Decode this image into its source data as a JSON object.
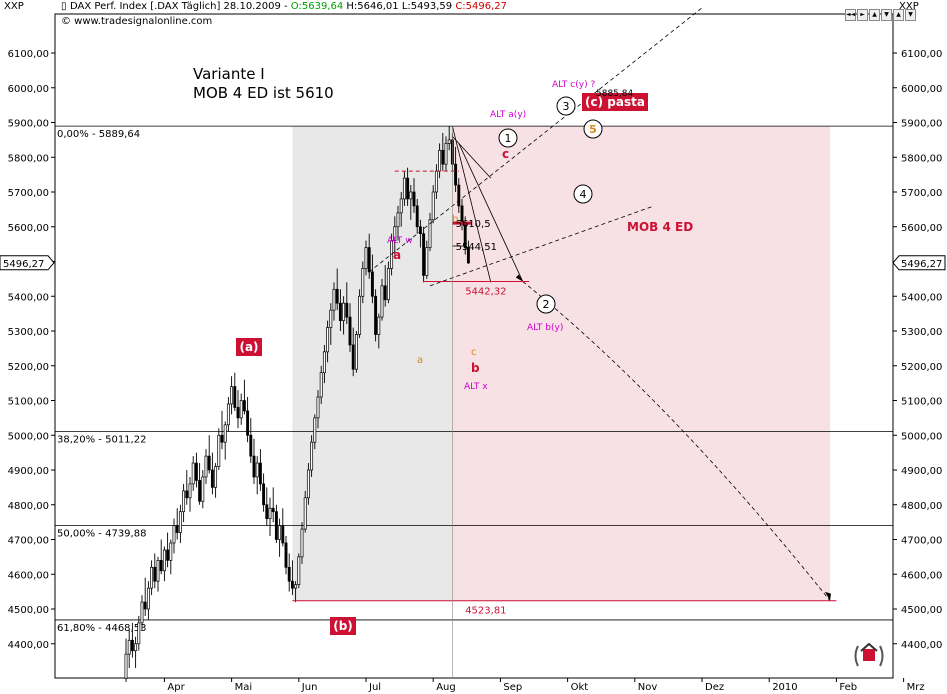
{
  "toolbar": {
    "symbol_left": "XXP",
    "symbol_right": "XXP",
    "nav_buttons": [
      "◄◄",
      "►",
      "▲",
      "▼",
      "▲",
      "▼"
    ]
  },
  "header": {
    "title_black": "DAX Perf. Index [.DAX Täglich] 28.10.2009 -",
    "open": "O:5639,64",
    "high_low": "H:5646,01 L:5493,59",
    "close": "C:5496,27",
    "copyright": "© www.tradesignalonline.com"
  },
  "notes": {
    "line1": "Variante I",
    "line2": "MOB 4 ED ist 5610"
  },
  "colors": {
    "grey_zone": "#e8e8e8",
    "pink_zone": "#f7e1e4",
    "red": "#cc1133",
    "magenta": "#cc00cc",
    "orange": "#d4881a",
    "candle_up": "#ffffff",
    "candle_down": "#000000"
  },
  "chart_data": {
    "type": "candlestick",
    "y_axis": {
      "range": [
        4330,
        6180
      ],
      "ticks": [
        4400,
        4500,
        4600,
        4700,
        4800,
        4900,
        5000,
        5100,
        5200,
        5300,
        5400,
        5500,
        5600,
        5700,
        5800,
        5900,
        6000,
        6100
      ],
      "tick_labels": [
        "4400,00",
        "4500,00",
        "4600,00",
        "4700,00",
        "4800,00",
        "4900,00",
        "5000,00",
        "5100,00",
        "5200,00",
        "5300,00",
        "5400,00",
        "5500,00",
        "5600,00",
        "5700,00",
        "5800,00",
        "5900,00",
        "6000,00",
        "6100,00"
      ],
      "current_value_label": "5496,27",
      "current_value": 5496.27
    },
    "x_axis": {
      "labels": [
        "Apr",
        "Mai",
        "Jun",
        "Jul",
        "Aug",
        "Sep",
        "Okt",
        "Nov",
        "Dez",
        "2010",
        "Feb",
        "Mrz"
      ],
      "label_x_index": [
        12,
        33,
        54,
        75,
        96,
        117,
        138,
        159,
        180,
        201,
        222,
        243
      ]
    },
    "bars": [
      [
        4300,
        4415,
        4290,
        4370
      ],
      [
        4370,
        4440,
        4330,
        4410
      ],
      [
        4410,
        4460,
        4360,
        4380
      ],
      [
        4380,
        4420,
        4330,
        4400
      ],
      [
        4400,
        4480,
        4380,
        4460
      ],
      [
        4460,
        4540,
        4440,
        4520
      ],
      [
        4520,
        4590,
        4480,
        4500
      ],
      [
        4500,
        4580,
        4470,
        4560
      ],
      [
        4560,
        4640,
        4540,
        4620
      ],
      [
        4620,
        4660,
        4560,
        4580
      ],
      [
        4580,
        4650,
        4550,
        4640
      ],
      [
        4640,
        4700,
        4600,
        4610
      ],
      [
        4610,
        4680,
        4580,
        4670
      ],
      [
        4670,
        4720,
        4620,
        4640
      ],
      [
        4640,
        4700,
        4600,
        4690
      ],
      [
        4690,
        4760,
        4660,
        4740
      ],
      [
        4740,
        4790,
        4700,
        4720
      ],
      [
        4720,
        4800,
        4690,
        4780
      ],
      [
        4780,
        4860,
        4750,
        4840
      ],
      [
        4840,
        4900,
        4800,
        4820
      ],
      [
        4820,
        4880,
        4780,
        4860
      ],
      [
        4860,
        4940,
        4840,
        4920
      ],
      [
        4920,
        4950,
        4850,
        4870
      ],
      [
        4870,
        4920,
        4800,
        4810
      ],
      [
        4810,
        4900,
        4790,
        4880
      ],
      [
        4880,
        4960,
        4860,
        4940
      ],
      [
        4940,
        5000,
        4890,
        4900
      ],
      [
        4900,
        4950,
        4830,
        4850
      ],
      [
        4850,
        4920,
        4820,
        4910
      ],
      [
        4910,
        5020,
        4900,
        5000
      ],
      [
        5000,
        5070,
        4960,
        4980
      ],
      [
        4980,
        5040,
        4930,
        5030
      ],
      [
        5030,
        5110,
        5010,
        5090
      ],
      [
        5090,
        5170,
        5060,
        5140
      ],
      [
        5140,
        5180,
        5070,
        5080
      ],
      [
        5080,
        5130,
        5020,
        5050
      ],
      [
        5050,
        5120,
        5030,
        5100
      ],
      [
        5100,
        5160,
        5060,
        5070
      ],
      [
        5070,
        5110,
        4980,
        5000
      ],
      [
        5000,
        5050,
        4920,
        4940
      ],
      [
        4940,
        4990,
        4860,
        4880
      ],
      [
        4880,
        4940,
        4830,
        4920
      ],
      [
        4920,
        4960,
        4840,
        4860
      ],
      [
        4860,
        4890,
        4780,
        4800
      ],
      [
        4800,
        4850,
        4740,
        4760
      ],
      [
        4760,
        4820,
        4710,
        4790
      ],
      [
        4790,
        4850,
        4750,
        4780
      ],
      [
        4780,
        4800,
        4690,
        4700
      ],
      [
        4700,
        4760,
        4650,
        4740
      ],
      [
        4740,
        4790,
        4680,
        4690
      ],
      [
        4690,
        4710,
        4600,
        4620
      ],
      [
        4620,
        4660,
        4550,
        4580
      ],
      [
        4580,
        4640,
        4540,
        4560
      ],
      [
        4560,
        4580,
        4520,
        4570
      ],
      [
        4570,
        4660,
        4560,
        4650
      ],
      [
        4650,
        4750,
        4630,
        4730
      ],
      [
        4730,
        4840,
        4720,
        4820
      ],
      [
        4820,
        4920,
        4800,
        4900
      ],
      [
        4900,
        5000,
        4880,
        4980
      ],
      [
        4980,
        5060,
        4960,
        5050
      ],
      [
        5050,
        5130,
        5020,
        5110
      ],
      [
        5110,
        5200,
        5090,
        5180
      ],
      [
        5180,
        5260,
        5150,
        5240
      ],
      [
        5240,
        5330,
        5210,
        5310
      ],
      [
        5310,
        5380,
        5260,
        5360
      ],
      [
        5360,
        5440,
        5330,
        5420
      ],
      [
        5420,
        5480,
        5360,
        5380
      ],
      [
        5380,
        5420,
        5300,
        5330
      ],
      [
        5330,
        5400,
        5290,
        5380
      ],
      [
        5380,
        5440,
        5320,
        5340
      ],
      [
        5340,
        5380,
        5240,
        5260
      ],
      [
        5260,
        5310,
        5170,
        5190
      ],
      [
        5190,
        5300,
        5180,
        5290
      ],
      [
        5290,
        5420,
        5280,
        5400
      ],
      [
        5400,
        5500,
        5380,
        5480
      ],
      [
        5480,
        5560,
        5460,
        5540
      ],
      [
        5540,
        5580,
        5450,
        5470
      ],
      [
        5470,
        5520,
        5380,
        5400
      ],
      [
        5400,
        5420,
        5270,
        5290
      ],
      [
        5290,
        5350,
        5250,
        5340
      ],
      [
        5340,
        5450,
        5330,
        5430
      ],
      [
        5430,
        5490,
        5370,
        5390
      ],
      [
        5390,
        5500,
        5380,
        5480
      ],
      [
        5480,
        5580,
        5460,
        5560
      ],
      [
        5560,
        5630,
        5520,
        5600
      ],
      [
        5600,
        5660,
        5560,
        5640
      ],
      [
        5640,
        5700,
        5600,
        5680
      ],
      [
        5680,
        5760,
        5660,
        5740
      ],
      [
        5740,
        5770,
        5660,
        5680
      ],
      [
        5680,
        5720,
        5620,
        5700
      ],
      [
        5700,
        5740,
        5640,
        5660
      ],
      [
        5660,
        5680,
        5580,
        5600
      ],
      [
        5600,
        5620,
        5540,
        5580
      ],
      [
        5580,
        5600,
        5440,
        5460
      ],
      [
        5460,
        5560,
        5450,
        5540
      ],
      [
        5540,
        5640,
        5530,
        5620
      ],
      [
        5620,
        5720,
        5610,
        5700
      ],
      [
        5700,
        5780,
        5680,
        5760
      ],
      [
        5760,
        5840,
        5740,
        5820
      ],
      [
        5820,
        5870,
        5760,
        5780
      ],
      [
        5780,
        5860,
        5760,
        5840
      ],
      [
        5840,
        5889,
        5820,
        5850
      ],
      [
        5850,
        5870,
        5760,
        5780
      ],
      [
        5780,
        5830,
        5700,
        5720
      ],
      [
        5720,
        5740,
        5640,
        5660
      ],
      [
        5660,
        5680,
        5590,
        5610
      ],
      [
        5610,
        5630,
        5520,
        5540
      ],
      [
        5540,
        5560,
        5493,
        5496
      ]
    ],
    "fib_levels": [
      {
        "label": "0,00% - 5889,64",
        "value": 5889.64
      },
      {
        "label": "38,20% - 5011,22",
        "value": 5011.22
      },
      {
        "label": "50,00% - 4739,88",
        "value": 4739.88
      },
      {
        "label": "61,80% - 4468,53",
        "value": 4468.53
      }
    ],
    "price_levels": [
      {
        "label": "5610,5",
        "value": 5610.5
      },
      {
        "label": "5544,51",
        "value": 5544.51
      },
      {
        "label": "5442,32",
        "value": 5442.32
      },
      {
        "label": "4523,81",
        "value": 4523.81
      }
    ],
    "annotations": {
      "wave_a_box": "(a)",
      "wave_b_box": "(b)",
      "wave_c_box": "(c) pasta",
      "mob": "MOB 4 ED",
      "alt_wy": "ALT w",
      "alt_ay": "ALT a(y)",
      "alt_cy": "ALT c(y) ?",
      "alt_by": "ALT b(y)",
      "alt_x": "ALT x",
      "alt_cy_price": "5885,84",
      "red_a": "a",
      "red_b": "b",
      "red_c": "c",
      "orange_a": "a",
      "orange_b": "b",
      "orange_c": "c",
      "circle_1": "1",
      "circle_2": "2",
      "circle_3": "3",
      "circle_4": "4",
      "circle_5": "5"
    }
  }
}
